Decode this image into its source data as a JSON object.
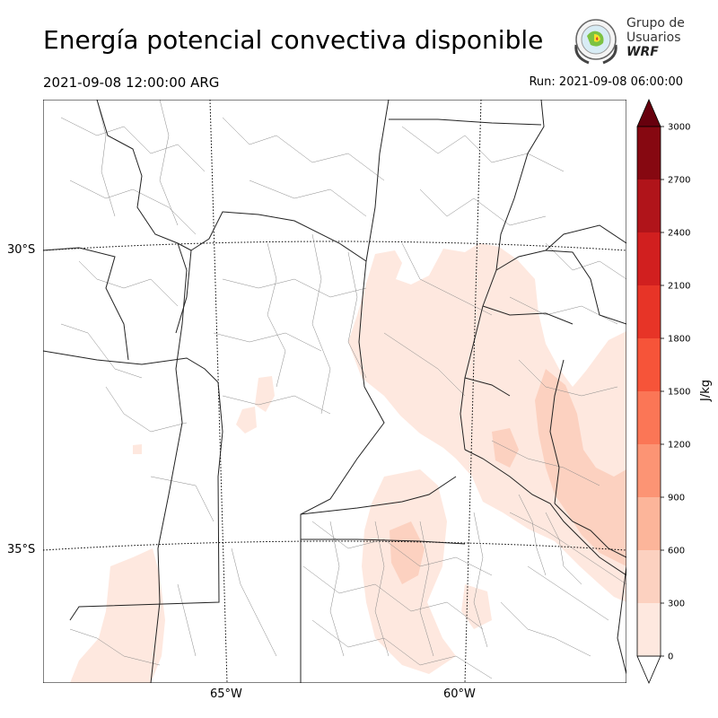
{
  "header": {
    "title": "Energía potencial convectiva disponible",
    "valid_time": "2021-09-08 12:00:00 ARG",
    "run_time": "Run: 2021-09-08 06:00:00"
  },
  "logo": {
    "line1": "Grupo de",
    "line2": "Usuarios",
    "line3": "WRF"
  },
  "map": {
    "lat_labels": [
      "30°S",
      "35°S"
    ],
    "lon_labels": [
      "65°W",
      "60°W"
    ]
  },
  "colorbar": {
    "label": "J/kg",
    "ticks": [
      "3000",
      "2700",
      "2400",
      "2100",
      "1800",
      "1500",
      "1200",
      "900",
      "600",
      "300",
      "0"
    ],
    "levels": [
      0,
      300,
      600,
      900,
      1200,
      1500,
      1800,
      2100,
      2400,
      2700,
      3000
    ],
    "colors": [
      "#fee8df",
      "#fcd1c0",
      "#fcb59a",
      "#fc9474",
      "#fb7656",
      "#f65439",
      "#e73427",
      "#d11f1f",
      "#b0141a",
      "#860811"
    ],
    "over_color": "#67000d"
  }
}
